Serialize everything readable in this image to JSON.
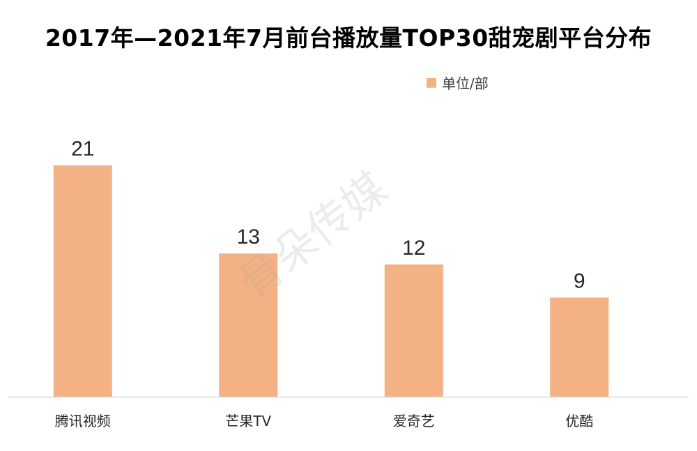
{
  "colors": {
    "bar": "#F4B183",
    "axis": "#D9D9D9",
    "text": "#262626"
  },
  "watermark": "骨朵传媒",
  "chart_data": {
    "type": "bar",
    "title": "2017年—2021年7月前台播放量TOP30甜宠剧平台分布",
    "categories": [
      "腾讯视频",
      "芒果TV",
      "爱奇艺",
      "优酷"
    ],
    "series": [
      {
        "name": "单位/部",
        "values": [
          21,
          13,
          12,
          9
        ]
      }
    ],
    "data_labels": [
      "21",
      "13",
      "12",
      "9"
    ],
    "ylim": [
      0,
      24
    ],
    "grid": false,
    "legend_position": "top-right"
  }
}
